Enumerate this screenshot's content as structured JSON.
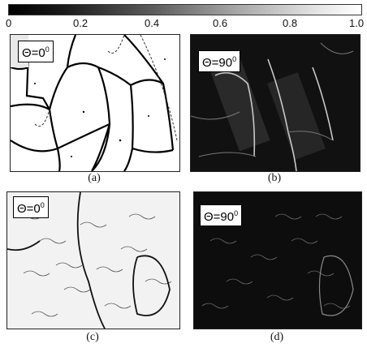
{
  "colorbar": {
    "ticks": [
      "0",
      "0.2",
      "0.4",
      "0.6",
      "0.8",
      "1.0"
    ]
  },
  "panels": [
    {
      "id": "a",
      "angle_label": "Θ=0",
      "angle_sup": "0",
      "caption": "(a)"
    },
    {
      "id": "b",
      "angle_label": "Θ=90",
      "angle_sup": "0",
      "caption": "(b)"
    },
    {
      "id": "c",
      "angle_label": "Θ=0",
      "angle_sup": "0",
      "caption": "(c)"
    },
    {
      "id": "d",
      "angle_label": "Θ=90",
      "angle_sup": "0",
      "caption": "(d)"
    }
  ],
  "colors": {
    "bright": "#ffffff",
    "dark": "#0d0d0d"
  }
}
